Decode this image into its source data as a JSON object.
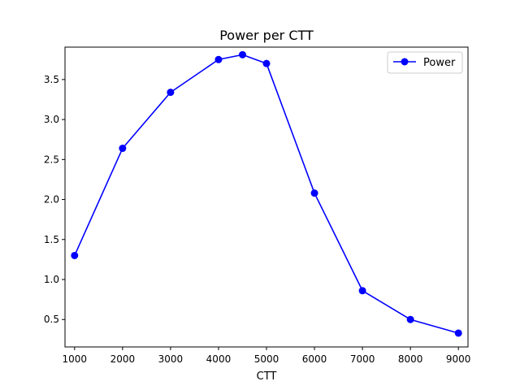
{
  "chart_data": {
    "type": "line",
    "title": "Power per CTT",
    "xlabel": "CTT",
    "ylabel": "",
    "x": [
      1000,
      2000,
      3000,
      4000,
      4500,
      5000,
      6000,
      7000,
      8000,
      9000
    ],
    "series": [
      {
        "name": "Power",
        "color": "#0000ff",
        "marker": "circle",
        "values": [
          1.3,
          2.64,
          3.34,
          3.75,
          3.81,
          3.7,
          2.08,
          0.86,
          0.5,
          0.33
        ]
      }
    ],
    "xlim": [
      800,
      9200
    ],
    "ylim": [
      0.157,
      3.905
    ],
    "xticks": [
      "1000",
      "2000",
      "3000",
      "4000",
      "5000",
      "6000",
      "7000",
      "8000",
      "9000"
    ],
    "yticks": [
      "0.5",
      "1.0",
      "1.5",
      "2.0",
      "2.5",
      "3.0",
      "3.5"
    ],
    "grid": false,
    "legend_position": "top-right"
  }
}
